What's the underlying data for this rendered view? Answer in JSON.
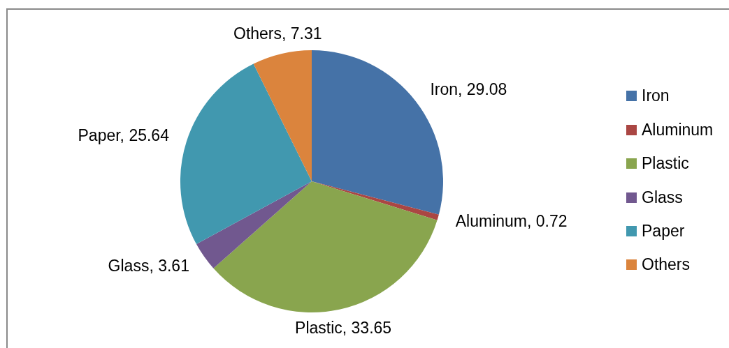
{
  "chart_data": {
    "type": "pie",
    "categories": [
      "Iron",
      "Aluminum",
      "Plastic",
      "Glass",
      "Paper",
      "Others"
    ],
    "values": [
      29.08,
      0.72,
      33.65,
      3.61,
      25.64,
      7.31
    ],
    "colors": [
      "#4572a7",
      "#aa4643",
      "#89a54e",
      "#71588f",
      "#4198af",
      "#db843d"
    ],
    "value_labels": [
      "Iron, 29.08",
      "Aluminum, 0.72",
      "Plastic, 33.65",
      "Glass, 3.61",
      "Paper, 25.64",
      "Others, 7.31"
    ],
    "legend": "right"
  }
}
